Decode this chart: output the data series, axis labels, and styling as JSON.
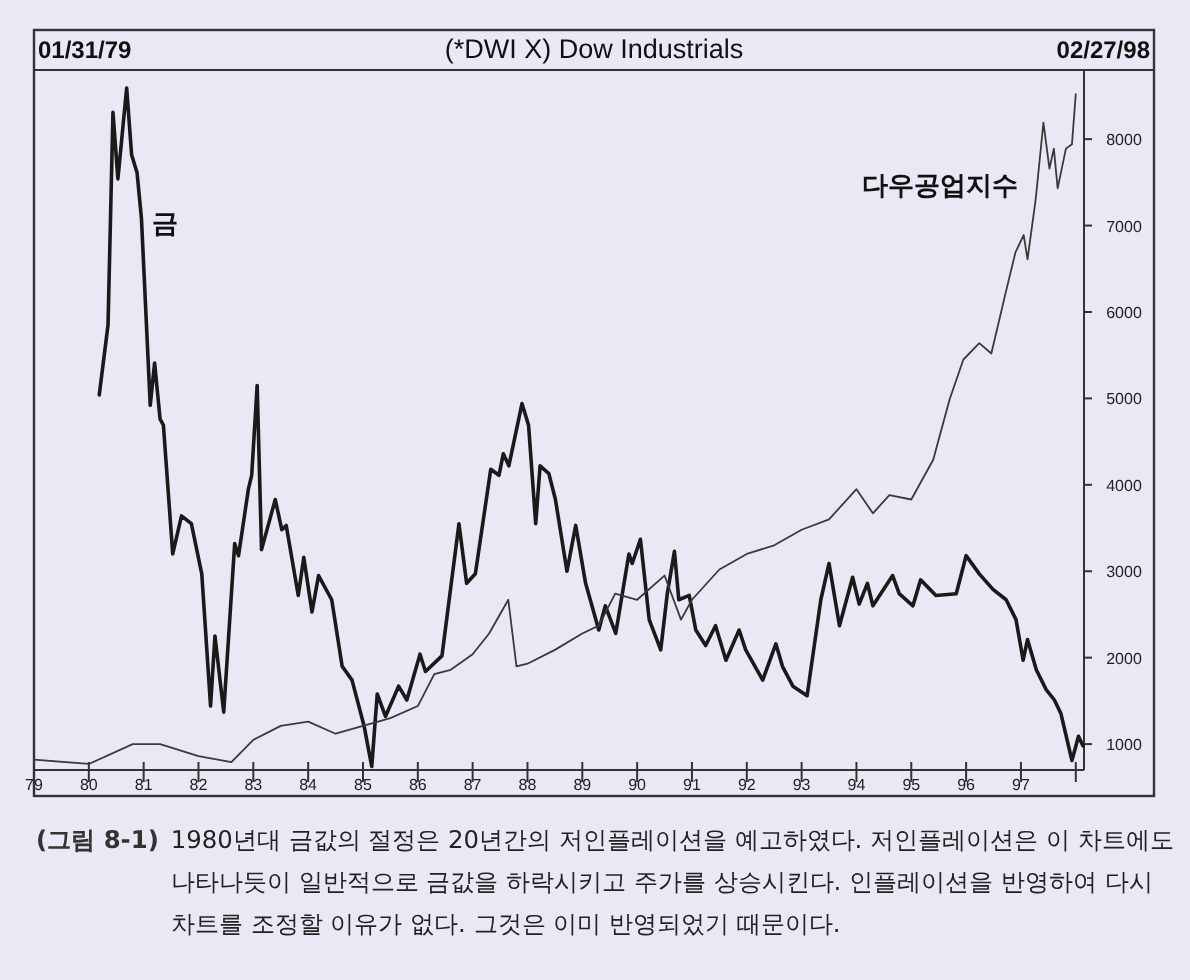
{
  "chart_data": {
    "type": "line",
    "title": "(*DWI X) Dow Industrials",
    "annotations": [
      "01/31/79",
      "02/27/98",
      "(그림 8-1)",
      "1980년대 금값의 절정은 20년간의 저인플레이션을 예고하였다. 저인플레이션은 이 차트에도 나타나듯이 일반적으로 금값을 하락시키고 주가를 상승시킨다. 인플레이션을 반영하여 다시 차트를 조정할 이유가 없다. 그것은 이미 반영되었기 때문이다."
    ],
    "xlim": [
      1979,
      1998.15
    ],
    "xticks": [
      {
        "value": 1979,
        "label": "79"
      },
      {
        "value": 1980,
        "label": "80"
      },
      {
        "value": 1981,
        "label": "81"
      },
      {
        "value": 1982,
        "label": "82"
      },
      {
        "value": 1983,
        "label": "83"
      },
      {
        "value": 1984,
        "label": "84"
      },
      {
        "value": 1985,
        "label": "85"
      },
      {
        "value": 1986,
        "label": "86"
      },
      {
        "value": 1987,
        "label": "87"
      },
      {
        "value": 1988,
        "label": "88"
      },
      {
        "value": 1989,
        "label": "89"
      },
      {
        "value": 1990,
        "label": "90"
      },
      {
        "value": 1991,
        "label": "91"
      },
      {
        "value": 1992,
        "label": "92"
      },
      {
        "value": 1993,
        "label": "93"
      },
      {
        "value": 1994,
        "label": "94"
      },
      {
        "value": 1995,
        "label": "95"
      },
      {
        "value": 1996,
        "label": "96"
      },
      {
        "value": 1997,
        "label": "97"
      },
      {
        "value": 1998,
        "label": null
      }
    ],
    "ylim": [
      700,
      8800
    ],
    "yticks": [
      1000,
      2000,
      3000,
      4000,
      5000,
      6000,
      7000,
      8000
    ],
    "grid": false,
    "series": [
      {
        "name": "금",
        "color": "#1a1a1a",
        "x": [
          1980.19,
          1980.35,
          1980.44,
          1980.53,
          1980.69,
          1980.78,
          1980.88,
          1980.96,
          1981.12,
          1981.2,
          1981.3,
          1981.36,
          1981.53,
          1981.69,
          1981.87,
          1982.06,
          1982.22,
          1982.3,
          1982.46,
          1982.66,
          1982.73,
          1982.91,
          1982.97,
          1983.07,
          1983.15,
          1983.4,
          1983.52,
          1983.6,
          1983.82,
          1983.92,
          1984.07,
          1984.19,
          1984.43,
          1984.62,
          1984.8,
          1985.02,
          1985.16,
          1985.26,
          1985.41,
          1985.65,
          1985.8,
          1986.04,
          1986.14,
          1986.44,
          1986.75,
          1986.89,
          1987.05,
          1987.33,
          1987.48,
          1987.56,
          1987.66,
          1987.9,
          1988.02,
          1988.15,
          1988.23,
          1988.39,
          1988.51,
          1988.72,
          1988.88,
          1989.06,
          1989.3,
          1989.42,
          1989.61,
          1989.85,
          1989.91,
          1990.06,
          1990.22,
          1990.43,
          1990.55,
          1990.68,
          1990.76,
          1990.95,
          1991.07,
          1991.25,
          1991.43,
          1991.62,
          1991.86,
          1991.98,
          1992.29,
          1992.53,
          1992.65,
          1992.84,
          1993.1,
          1993.35,
          1993.5,
          1993.69,
          1993.93,
          1994.05,
          1994.2,
          1994.3,
          1994.66,
          1994.78,
          1995.03,
          1995.17,
          1995.45,
          1995.82,
          1996.0,
          1996.24,
          1996.49,
          1996.73,
          1996.91,
          1997.04,
          1997.12,
          1997.28,
          1997.46,
          1997.61,
          1997.73,
          1997.93,
          1998.05,
          1998.13
        ],
        "values": [
          5040,
          5850,
          8310,
          7540,
          8590,
          7820,
          7610,
          7080,
          4920,
          5410,
          4760,
          4690,
          3200,
          3640,
          3550,
          2970,
          1440,
          2250,
          1370,
          3320,
          3180,
          3950,
          4110,
          5150,
          3250,
          3830,
          3480,
          3530,
          2720,
          3160,
          2530,
          2950,
          2670,
          1900,
          1740,
          1210,
          740,
          1580,
          1320,
          1670,
          1510,
          2040,
          1840,
          2020,
          3550,
          2860,
          2970,
          4180,
          4110,
          4360,
          4220,
          4940,
          4690,
          3550,
          4220,
          4130,
          3830,
          3000,
          3530,
          2860,
          2320,
          2600,
          2280,
          3200,
          3090,
          3370,
          2440,
          2090,
          2740,
          3230,
          2670,
          2720,
          2320,
          2140,
          2370,
          1970,
          2320,
          2090,
          1740,
          2160,
          1900,
          1670,
          1560,
          2670,
          3090,
          2370,
          2930,
          2620,
          2860,
          2600,
          2950,
          2740,
          2600,
          2900,
          2720,
          2740,
          3180,
          2970,
          2790,
          2670,
          2440,
          1970,
          2210,
          1860,
          1630,
          1510,
          1350,
          810,
          1090,
          980
        ]
      },
      {
        "name": "다우공업지수",
        "color": "#3a3a3a",
        "x": [
          1979.0,
          1980.0,
          1980.8,
          1981.3,
          1982.0,
          1982.6,
          1983.0,
          1983.5,
          1984.0,
          1984.5,
          1985.0,
          1985.5,
          1986.0,
          1986.3,
          1986.6,
          1987.0,
          1987.3,
          1987.65,
          1987.8,
          1988.0,
          1988.5,
          1989.0,
          1989.3,
          1989.6,
          1990.0,
          1990.5,
          1990.8,
          1991.0,
          1991.5,
          1992.0,
          1992.5,
          1993.0,
          1993.5,
          1994.0,
          1994.3,
          1994.6,
          1995.0,
          1995.4,
          1995.7,
          1995.95,
          1996.24,
          1996.46,
          1996.72,
          1996.9,
          1997.05,
          1997.12,
          1997.27,
          1997.41,
          1997.52,
          1997.6,
          1997.67,
          1997.82,
          1997.93,
          1998.0
        ],
        "values": [
          820,
          770,
          1000,
          1000,
          860,
          790,
          1050,
          1210,
          1260,
          1120,
          1210,
          1300,
          1440,
          1810,
          1860,
          2040,
          2280,
          2670,
          1900,
          1930,
          2090,
          2280,
          2370,
          2740,
          2670,
          2950,
          2440,
          2670,
          3020,
          3200,
          3300,
          3480,
          3600,
          3950,
          3670,
          3880,
          3830,
          4290,
          4990,
          5450,
          5640,
          5520,
          6220,
          6690,
          6890,
          6610,
          7310,
          8190,
          7660,
          7890,
          7430,
          7890,
          7940,
          8520
        ]
      }
    ]
  }
}
